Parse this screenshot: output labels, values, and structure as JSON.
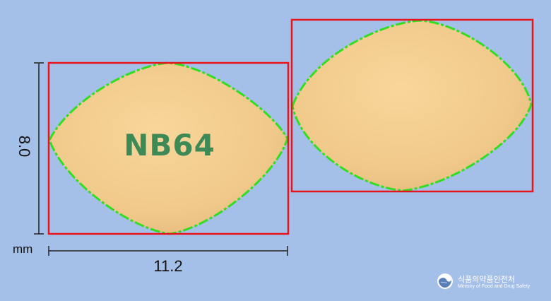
{
  "pill": {
    "imprint": "NB64",
    "color": "#f0c98a",
    "outline_color": "#33dd22",
    "box_color": "#e8141c"
  },
  "dimensions": {
    "height": "8.0",
    "unit": "mm",
    "width": "11.2"
  },
  "logo": {
    "icon": "ministry-emblem-icon",
    "name_ko": "식품의약품안전처",
    "name_en": "Ministry of Food and Drug Safety"
  }
}
